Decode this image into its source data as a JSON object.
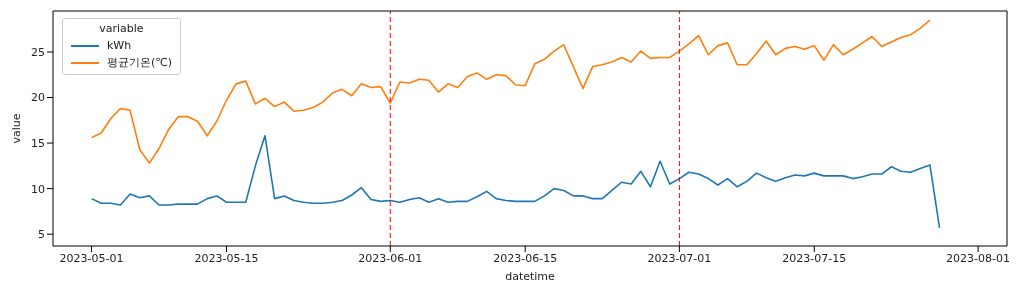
{
  "chart_data": {
    "type": "line",
    "xlabel": "datetime",
    "ylabel": "value",
    "legend_title": "variable",
    "legend": "top left",
    "grid": false,
    "marker": "none",
    "line_style": "solid",
    "x": [
      "2023-05-01",
      "2023-05-02",
      "2023-05-03",
      "2023-05-04",
      "2023-05-05",
      "2023-05-06",
      "2023-05-07",
      "2023-05-08",
      "2023-05-09",
      "2023-05-10",
      "2023-05-11",
      "2023-05-12",
      "2023-05-13",
      "2023-05-14",
      "2023-05-15",
      "2023-05-16",
      "2023-05-17",
      "2023-05-18",
      "2023-05-19",
      "2023-05-20",
      "2023-05-21",
      "2023-05-22",
      "2023-05-23",
      "2023-05-24",
      "2023-05-25",
      "2023-05-26",
      "2023-05-27",
      "2023-05-28",
      "2023-05-29",
      "2023-05-30",
      "2023-05-31",
      "2023-06-01",
      "2023-06-02",
      "2023-06-03",
      "2023-06-04",
      "2023-06-05",
      "2023-06-06",
      "2023-06-07",
      "2023-06-08",
      "2023-06-09",
      "2023-06-10",
      "2023-06-11",
      "2023-06-12",
      "2023-06-13",
      "2023-06-14",
      "2023-06-15",
      "2023-06-16",
      "2023-06-17",
      "2023-06-18",
      "2023-06-19",
      "2023-06-20",
      "2023-06-21",
      "2023-06-22",
      "2023-06-23",
      "2023-06-24",
      "2023-06-25",
      "2023-06-26",
      "2023-06-27",
      "2023-06-28",
      "2023-06-29",
      "2023-06-30",
      "2023-07-01",
      "2023-07-02",
      "2023-07-03",
      "2023-07-04",
      "2023-07-05",
      "2023-07-06",
      "2023-07-07",
      "2023-07-08",
      "2023-07-09",
      "2023-07-10",
      "2023-07-11",
      "2023-07-12",
      "2023-07-13",
      "2023-07-14",
      "2023-07-15",
      "2023-07-16",
      "2023-07-17",
      "2023-07-18",
      "2023-07-19",
      "2023-07-20",
      "2023-07-21",
      "2023-07-22",
      "2023-07-23",
      "2023-07-24",
      "2023-07-25",
      "2023-07-26",
      "2023-07-27",
      "2023-07-28"
    ],
    "series": [
      {
        "name": "kWh",
        "color": "#1f77b4",
        "values": [
          8.9,
          8.4,
          8.4,
          8.2,
          9.4,
          9.0,
          9.2,
          8.2,
          8.2,
          8.3,
          8.3,
          8.3,
          8.9,
          9.2,
          8.5,
          8.5,
          8.5,
          12.5,
          15.8,
          8.9,
          9.2,
          8.7,
          8.5,
          8.4,
          8.4,
          8.5,
          8.7,
          9.3,
          10.1,
          8.8,
          8.6,
          8.7,
          8.5,
          8.8,
          9.0,
          8.5,
          8.9,
          8.5,
          8.6,
          8.6,
          9.1,
          9.7,
          8.9,
          8.7,
          8.6,
          8.6,
          8.6,
          9.2,
          10.0,
          9.8,
          9.2,
          9.2,
          8.9,
          8.9,
          9.8,
          10.7,
          10.5,
          11.9,
          10.2,
          13.0,
          10.5,
          11.1,
          11.8,
          11.6,
          11.1,
          10.4,
          11.1,
          10.2,
          10.8,
          11.7,
          11.2,
          10.8,
          11.2,
          11.5,
          11.4,
          11.7,
          11.4,
          11.4,
          11.4,
          11.1,
          11.3,
          11.6,
          11.6,
          12.4,
          11.9,
          11.8,
          12.2,
          12.6,
          5.7
        ]
      },
      {
        "name": "평균기온(℃)",
        "color": "#ff7f0e",
        "values": [
          15.6,
          16.1,
          17.7,
          18.8,
          18.6,
          14.3,
          12.8,
          14.4,
          16.5,
          17.9,
          17.9,
          17.4,
          15.8,
          17.4,
          19.7,
          21.5,
          21.8,
          19.3,
          19.9,
          19.0,
          19.5,
          18.5,
          18.6,
          18.9,
          19.5,
          20.5,
          20.9,
          20.2,
          21.5,
          21.1,
          21.2,
          19.4,
          21.7,
          21.6,
          22.0,
          21.9,
          20.6,
          21.5,
          21.1,
          22.3,
          22.7,
          22.0,
          22.5,
          22.4,
          21.4,
          21.3,
          23.7,
          24.2,
          25.1,
          25.8,
          23.4,
          21.0,
          23.4,
          23.6,
          23.9,
          24.4,
          23.9,
          25.1,
          24.3,
          24.4,
          24.4,
          25.1,
          25.9,
          26.8,
          24.7,
          25.7,
          26.0,
          23.6,
          23.6,
          24.8,
          26.2,
          24.7,
          25.4,
          25.6,
          25.3,
          25.7,
          24.1,
          25.8,
          24.7,
          25.3,
          26.0,
          26.7,
          25.6,
          26.1,
          26.6,
          26.9,
          27.6,
          28.5,
          null
        ]
      }
    ],
    "xlim": [
      "2023-04-27",
      "2023-08-04"
    ],
    "xticks": [
      "2023-05-01",
      "2023-05-15",
      "2023-06-01",
      "2023-06-15",
      "2023-07-01",
      "2023-07-15",
      "2023-08-01"
    ],
    "ylim": [
      3.7,
      29.5
    ],
    "yticks": [
      5,
      10,
      15,
      20,
      25
    ],
    "ref_lines": [
      {
        "axis": "x",
        "value": "2023-06-01",
        "color": "#ff0000",
        "line_style": "dashed"
      },
      {
        "axis": "x",
        "value": "2023-07-01",
        "color": "#ff0000",
        "line_style": "dashed"
      }
    ]
  }
}
